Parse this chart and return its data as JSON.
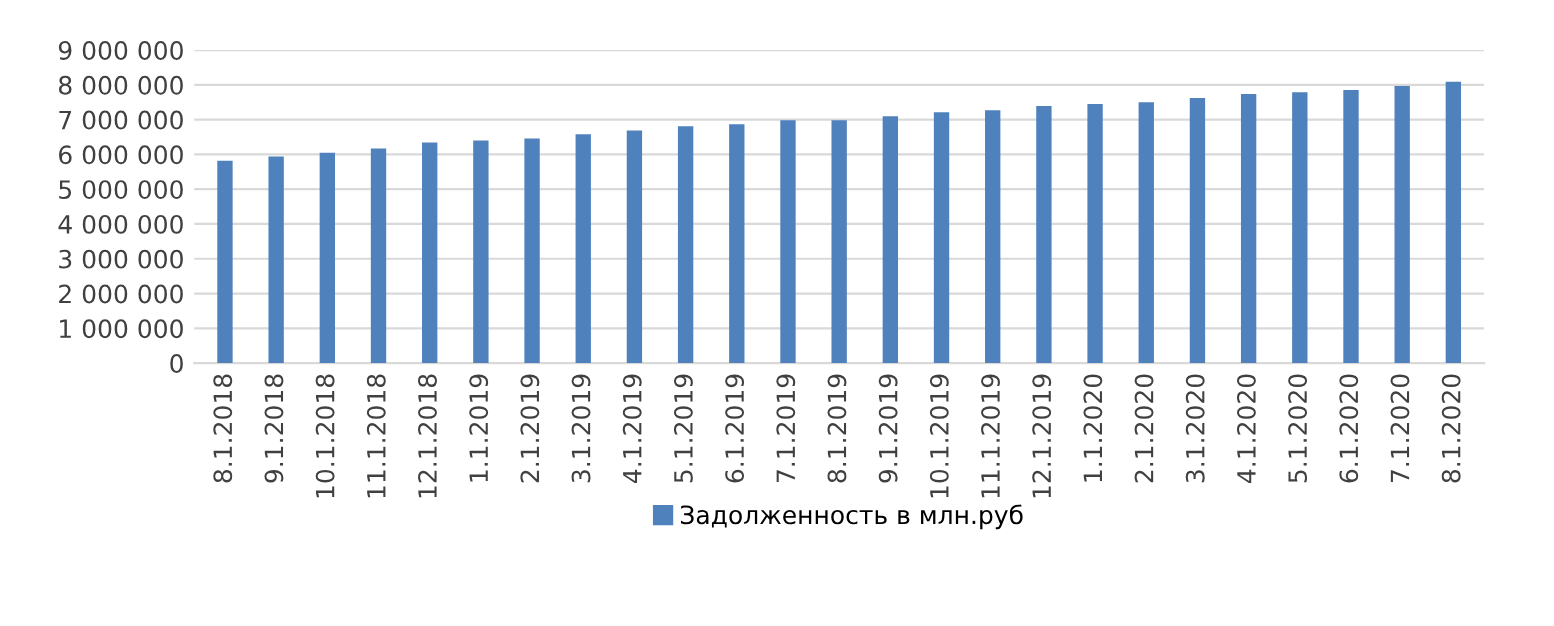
{
  "chart_data": {
    "type": "bar",
    "categories": [
      "8.1.2018",
      "9.1.2018",
      "10.1.2018",
      "11.1.2018",
      "12.1.2018",
      "1.1.2019",
      "2.1.2019",
      "3.1.2019",
      "4.1.2019",
      "5.1.2019",
      "6.1.2019",
      "7.1.2019",
      "8.1.2019",
      "9.1.2019",
      "10.1.2019",
      "11.1.2019",
      "12.1.2019",
      "1.1.2020",
      "2.1.2020",
      "3.1.2020",
      "4.1.2020",
      "5.1.2020",
      "6.1.2020",
      "7.1.2020",
      "8.1.2020"
    ],
    "series": [
      {
        "name": "Задолженность в млн.руб",
        "color": "#4f81bd",
        "values": [
          5820000,
          5940000,
          6050000,
          6170000,
          6340000,
          6400000,
          6460000,
          6580000,
          6690000,
          6810000,
          6870000,
          6980000,
          6980000,
          7100000,
          7210000,
          7270000,
          7390000,
          7450000,
          7500000,
          7620000,
          7740000,
          7790000,
          7850000,
          7970000,
          8090000
        ]
      }
    ],
    "ylim": [
      0,
      9000000
    ],
    "yticks": [
      {
        "value": 0,
        "label": "0"
      },
      {
        "value": 1000000,
        "label": "1 000 000"
      },
      {
        "value": 2000000,
        "label": "2 000 000"
      },
      {
        "value": 3000000,
        "label": "3 000 000"
      },
      {
        "value": 4000000,
        "label": "4 000 000"
      },
      {
        "value": 5000000,
        "label": "5 000 000"
      },
      {
        "value": 6000000,
        "label": "6 000 000"
      },
      {
        "value": 7000000,
        "label": "7 000 000"
      },
      {
        "value": 8000000,
        "label": "8 000 000"
      },
      {
        "value": 9000000,
        "label": "9 000 000"
      }
    ],
    "grid": "y",
    "legend": "bottom"
  }
}
